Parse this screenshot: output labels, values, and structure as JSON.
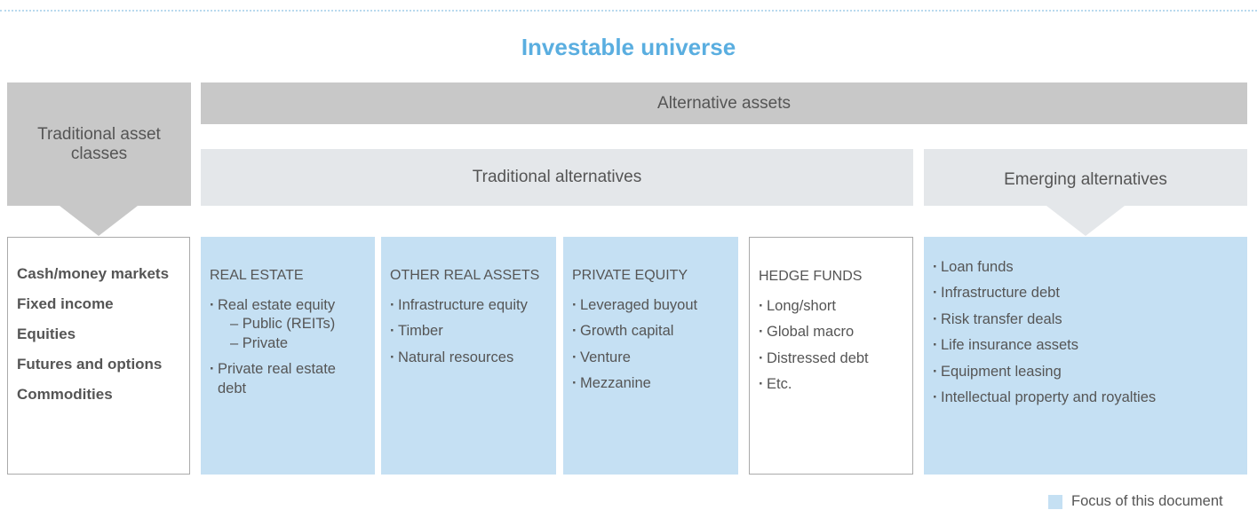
{
  "title": "Investable universe",
  "traditional_header": "Traditional asset classes",
  "alternative_header": "Alternative assets",
  "traditional_alternatives_header": "Traditional alternatives",
  "emerging_alternatives_header": "Emerging alternatives",
  "columns": [
    {
      "items": [
        "Cash/money markets",
        "Fixed income",
        "Equities",
        "Futures and options",
        "Commodities"
      ]
    },
    {
      "heading": "REAL ESTATE",
      "items": [
        {
          "text": "Real estate equity",
          "sub": [
            "– Public (REITs)",
            "– Private"
          ]
        },
        {
          "text": "Private real estate debt"
        }
      ]
    },
    {
      "heading": "OTHER REAL ASSETS",
      "items": [
        {
          "text": "Infrastructure equity"
        },
        {
          "text": "Timber"
        },
        {
          "text": "Natural resources"
        }
      ]
    },
    {
      "heading": "PRIVATE EQUITY",
      "items": [
        {
          "text": "Leveraged buyout"
        },
        {
          "text": "Growth capital"
        },
        {
          "text": "Venture"
        },
        {
          "text": "Mezzanine"
        }
      ]
    },
    {
      "heading": "HEDGE FUNDS",
      "items": [
        {
          "text": "Long/short"
        },
        {
          "text": "Global macro"
        },
        {
          "text": "Distressed debt"
        },
        {
          "text": "Etc."
        }
      ]
    },
    {
      "items": [
        {
          "text": "Loan funds"
        },
        {
          "text": "Infrastructure debt"
        },
        {
          "text": "Risk transfer deals"
        },
        {
          "text": "Life insurance assets"
        },
        {
          "text": "Equipment leasing"
        },
        {
          "text": "Intellectual property and royalties"
        }
      ]
    }
  ],
  "legend": "Focus of this document"
}
